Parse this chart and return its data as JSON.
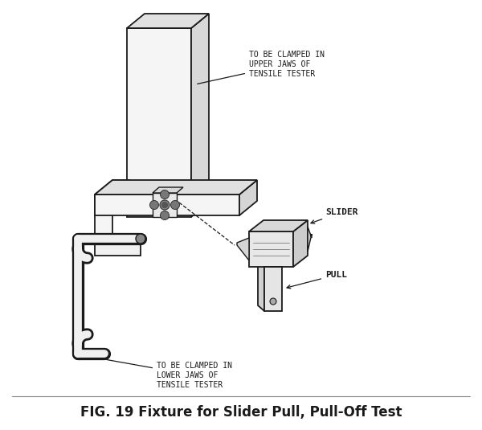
{
  "title": "FIG. 19 Fixture for Slider Pull, Pull-Off Test",
  "title_fontsize": 12,
  "title_fontweight": "bold",
  "bg_color": "#ffffff",
  "annotation_upper": "TO BE CLAMPED IN\nUPPER JAWS OF\nTENSILE TESTER",
  "annotation_lower": "TO BE CLAMPED IN\nLOWER JAWS OF\nTENSILE TESTER",
  "label_slider": "SLIDER",
  "label_pull": "PULL",
  "line_color": "#1a1a1a",
  "annotation_fontsize": 7.0,
  "label_fontsize": 8.0
}
